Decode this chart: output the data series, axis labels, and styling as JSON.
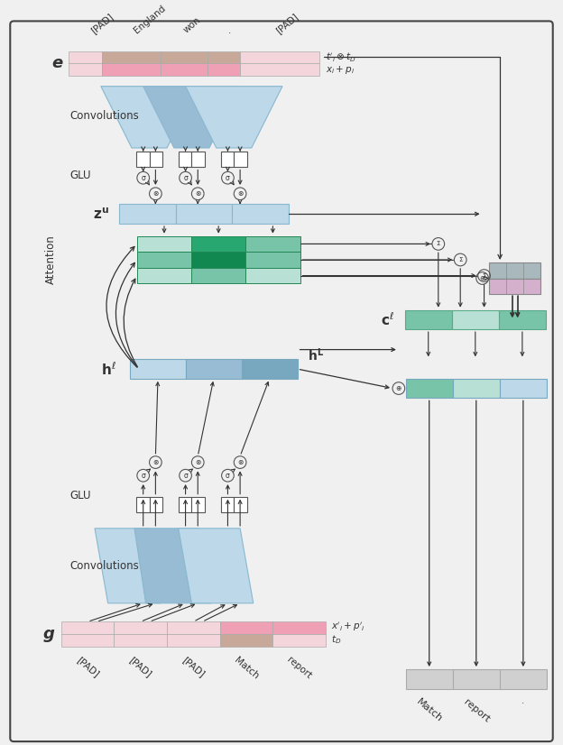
{
  "bg_color": "#f0f0f0",
  "border_color": "#444444",
  "encoder_labels": [
    "[PAD]",
    "England",
    "won",
    ".",
    "[PAD]"
  ],
  "decoder_labels": [
    "[PAD]",
    "[PAD]",
    "[PAD]",
    "Match",
    "report"
  ],
  "output_labels": [
    "Match",
    "report",
    "."
  ],
  "color_pink_light": "#f5d5dc",
  "color_pink_mid": "#f0a0b5",
  "color_brown_light": "#c8a898",
  "color_blue_light": "#bdd8e8",
  "color_blue_mid": "#98bcd4",
  "color_blue_dark": "#78a8c0",
  "color_teal_vlight": "#b8e0d4",
  "color_teal_light": "#78c4a8",
  "color_teal_mid": "#28a870",
  "color_teal_dark": "#108850",
  "color_purple_light": "#d4b0cc",
  "color_gray_light": "#d0d0d0",
  "color_gray_top": "#a8b8bc",
  "color_white": "#ffffff",
  "color_line": "#333333"
}
